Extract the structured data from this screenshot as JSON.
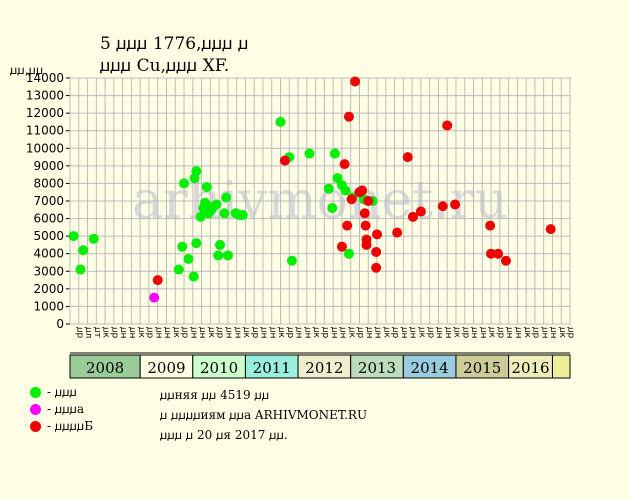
{
  "header": {
    "title_line1": "5 ꙡꙡꙡ 1776,ꙡꙡꙡ ꙡ",
    "title_line2": "ꙡꙡꙡ Cu,ꙡꙡꙡ XF.",
    "unit_label": "ꙡꙡ,ꙡꙡ"
  },
  "legend": [
    {
      "label": "- ꙡꙡꙡ",
      "color": "#00ee00"
    },
    {
      "label": "- ꙡꙡꙡа",
      "color": "#ff00ff"
    },
    {
      "label": "- ꙡꙡꙡꙡБ",
      "color": "#ee0000"
    }
  ],
  "notes": {
    "line1": "ꙡꙡняя ꙡꙡ 4519 ꙡꙡ",
    "line2": "ꙡ ꙡꙡꙡꙡиям ꙡꙡа ARHIVMONET.RU",
    "line3": "ꙡꙡꙡ ꙡ 20 ꙡя 2017 ꙡꙡ."
  },
  "watermark": "arhivmonet.ru",
  "colors": {
    "grid": "#bbbbbb",
    "background": "#ffffe6",
    "green": "#00ee00",
    "magenta": "#ff00ff",
    "red": "#ee0000"
  },
  "chart_data": {
    "type": "scatter",
    "title": "",
    "xlabel": "",
    "ylabel": "ꙡꙡ,ꙡꙡ",
    "ylim": [
      0,
      14000
    ],
    "yticks": [
      0,
      1000,
      2000,
      3000,
      4000,
      5000,
      6000,
      7000,
      8000,
      9000,
      10000,
      11000,
      12000,
      13000,
      14000
    ],
    "grid": true,
    "x_unit": "quarter",
    "years": [
      {
        "label": "2008",
        "start": 0,
        "end": 8,
        "color": "#99cc99"
      },
      {
        "label": "2009",
        "start": 8,
        "end": 14,
        "color": "#ffffe6"
      },
      {
        "label": "2010",
        "start": 14,
        "end": 20,
        "color": "#ccffcc"
      },
      {
        "label": "2011",
        "start": 20,
        "end": 26,
        "color": "#99eedd"
      },
      {
        "label": "2012",
        "start": 26,
        "end": 32,
        "color": "#eeeecc"
      },
      {
        "label": "2013",
        "start": 32,
        "end": 38,
        "color": "#bbddbb"
      },
      {
        "label": "2014",
        "start": 38,
        "end": 44,
        "color": "#99ccdd"
      },
      {
        "label": "2015",
        "start": 44,
        "end": 50,
        "color": "#cccc99"
      },
      {
        "label": "2016",
        "start": 50,
        "end": 55,
        "color": "#eeeebb"
      },
      {
        "label": "",
        "start": 55,
        "end": 57,
        "color": "#eeee99"
      }
    ],
    "xtick_labels": [
      "ꙡр",
      "ꙡл",
      "ꙡт",
      "ꙡк",
      "ꙡр",
      "ꙡн",
      "ꙡн",
      "ꙡк",
      "ꙡр",
      "ꙡн",
      "ꙡн",
      "ꙡк",
      "ꙡр",
      "ꙡн",
      "ꙡн",
      "ꙡк",
      "ꙡр",
      "ꙡн",
      "ꙡн",
      "ꙡк",
      "ꙡр",
      "ꙡн",
      "ꙡн",
      "ꙡк",
      "ꙡр",
      "ꙡн",
      "ꙡн",
      "ꙡк",
      "ꙡр",
      "ꙡн",
      "ꙡн",
      "ꙡк",
      "ꙡр",
      "ꙡн",
      "ꙡн",
      "ꙡк",
      "ꙡр",
      "ꙡн",
      "ꙡн",
      "ꙡк",
      "ꙡр",
      "ꙡн",
      "ꙡн",
      "ꙡк",
      "ꙡр",
      "ꙡн",
      "ꙡн",
      "ꙡк",
      "ꙡр",
      "ꙡн",
      "ꙡн",
      "ꙡк",
      "ꙡр",
      "ꙡн",
      "ꙡн",
      "ꙡк",
      "ꙡр"
    ],
    "series": [
      {
        "color": "#00ee00",
        "points": [
          [
            0.4,
            5000
          ],
          [
            1.2,
            3100
          ],
          [
            1.5,
            4200
          ],
          [
            2.7,
            4850
          ],
          [
            12.4,
            3100
          ],
          [
            12.8,
            4400
          ],
          [
            13.5,
            3700
          ],
          [
            14.1,
            2700
          ],
          [
            14.4,
            4600
          ],
          [
            13.0,
            8000
          ],
          [
            14.2,
            8300
          ],
          [
            14.4,
            8700
          ],
          [
            14.9,
            6100
          ],
          [
            15.2,
            6600
          ],
          [
            15.4,
            6900
          ],
          [
            15.6,
            7800
          ],
          [
            15.8,
            6300
          ],
          [
            16.1,
            6500
          ],
          [
            16.4,
            6700
          ],
          [
            16.7,
            6800
          ],
          [
            16.9,
            3900
          ],
          [
            17.1,
            4500
          ],
          [
            17.6,
            6300
          ],
          [
            17.8,
            7200
          ],
          [
            18.0,
            3900
          ],
          [
            18.9,
            6300
          ],
          [
            19.3,
            6200
          ],
          [
            19.7,
            6200
          ],
          [
            24.0,
            11500
          ],
          [
            25.0,
            9500
          ],
          [
            25.3,
            3600
          ],
          [
            27.3,
            9700
          ],
          [
            29.5,
            7700
          ],
          [
            29.9,
            6600
          ],
          [
            30.2,
            9700
          ],
          [
            30.5,
            8300
          ],
          [
            31.0,
            7900
          ],
          [
            31.4,
            7600
          ],
          [
            31.8,
            4000
          ],
          [
            32.2,
            7200
          ],
          [
            33.5,
            7100
          ],
          [
            34.5,
            7000
          ]
        ]
      },
      {
        "color": "#ff00ff",
        "points": [
          [
            9.6,
            1500
          ]
        ]
      },
      {
        "color": "#ee0000",
        "points": [
          [
            10.0,
            2500
          ],
          [
            24.5,
            9300
          ],
          [
            31.0,
            4400
          ],
          [
            31.3,
            9100
          ],
          [
            31.6,
            5600
          ],
          [
            31.8,
            11800
          ],
          [
            32.1,
            7100
          ],
          [
            32.5,
            13800
          ],
          [
            33.0,
            7500
          ],
          [
            33.3,
            7600
          ],
          [
            33.6,
            6300
          ],
          [
            33.8,
            4500
          ],
          [
            33.8,
            4800
          ],
          [
            34.0,
            7000
          ],
          [
            33.7,
            5600
          ],
          [
            34.9,
            4100
          ],
          [
            34.9,
            3200
          ],
          [
            35.0,
            5100
          ],
          [
            37.3,
            5200
          ],
          [
            38.5,
            9500
          ],
          [
            39.1,
            6100
          ],
          [
            40.0,
            6400
          ],
          [
            42.5,
            6700
          ],
          [
            43.0,
            11300
          ],
          [
            43.9,
            6800
          ],
          [
            47.9,
            5600
          ],
          [
            48.0,
            4000
          ],
          [
            48.8,
            4000
          ],
          [
            49.7,
            3600
          ],
          [
            54.8,
            5400
          ]
        ]
      }
    ]
  }
}
